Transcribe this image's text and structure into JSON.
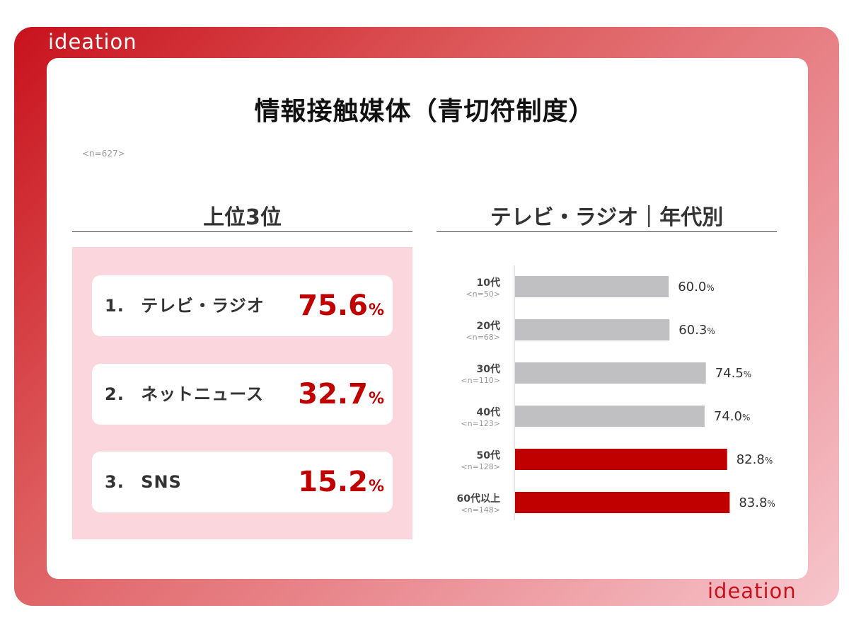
{
  "brand": {
    "name": "ideation"
  },
  "title": "情報接触媒体（青切符制度）",
  "sample_size": "<n=627>",
  "top3": {
    "heading": "上位3位",
    "items": [
      {
        "rank": "1.",
        "label": "テレビ・ラジオ",
        "value": "75.6",
        "unit": "%"
      },
      {
        "rank": "2.",
        "label": "ネットニュース",
        "value": "32.7",
        "unit": "%"
      },
      {
        "rank": "3.",
        "label": "SNS",
        "value": "15.2",
        "unit": "%"
      }
    ]
  },
  "colors": {
    "highlight": "#c00000",
    "default_bar": "#c0bfc1",
    "panel_bg": "#fbd6dc"
  },
  "chart_data": {
    "type": "bar",
    "orientation": "horizontal",
    "title": "テレビ・ラジオ｜年代別",
    "unit": "%",
    "categories": [
      "10代",
      "20代",
      "30代",
      "40代",
      "50代",
      "60代以上"
    ],
    "sample_sizes": [
      "<n=50>",
      "<n=68>",
      "<n=110>",
      "<n=123>",
      "<n=128>",
      "<n=148>"
    ],
    "values": [
      60.0,
      60.3,
      74.5,
      74.0,
      82.8,
      83.8
    ],
    "highlighted": [
      false,
      false,
      false,
      false,
      true,
      true
    ],
    "xlim": [
      0,
      100
    ],
    "grid": false,
    "legend": "none"
  }
}
